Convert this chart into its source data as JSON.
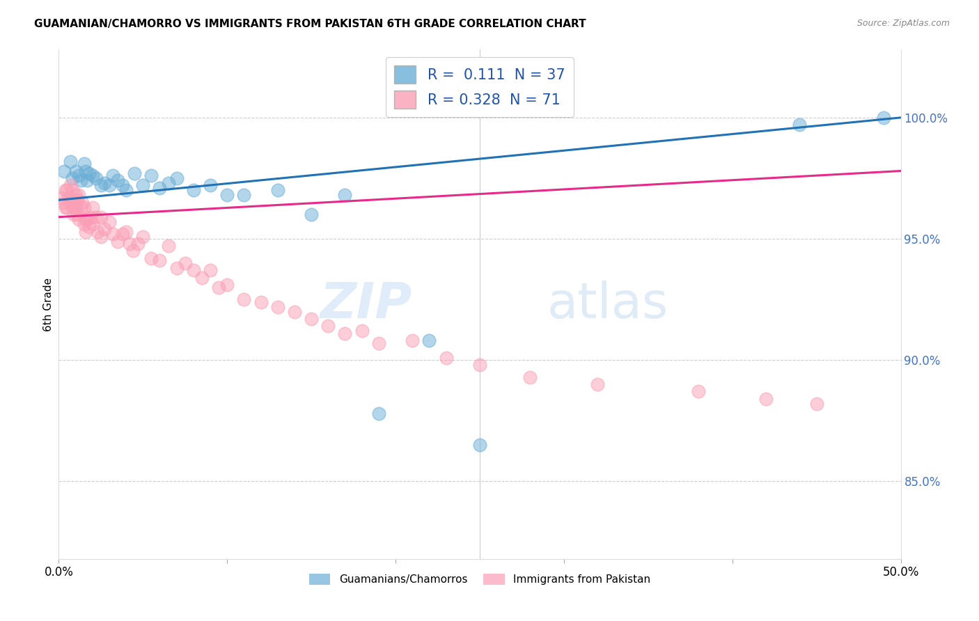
{
  "title": "GUAMANIAN/CHAMORRO VS IMMIGRANTS FROM PAKISTAN 6TH GRADE CORRELATION CHART",
  "source": "Source: ZipAtlas.com",
  "ylabel": "6th Grade",
  "ytick_labels": [
    "100.0%",
    "95.0%",
    "90.0%",
    "85.0%"
  ],
  "ytick_values": [
    1.0,
    0.95,
    0.9,
    0.85
  ],
  "xlim": [
    0.0,
    0.5
  ],
  "ylim": [
    0.818,
    1.028
  ],
  "color_blue": "#6baed6",
  "color_pink": "#fa9fb5",
  "color_blue_line": "#2171b5",
  "color_pink_line": "#e7298a",
  "watermark_zip": "ZIP",
  "watermark_atlas": "atlas",
  "legend_label_blue": "Guamanians/Chamorros",
  "legend_label_pink": "Immigrants from Pakistan",
  "blue_x": [
    0.003,
    0.007,
    0.008,
    0.01,
    0.012,
    0.013,
    0.015,
    0.016,
    0.017,
    0.018,
    0.02,
    0.022,
    0.025,
    0.027,
    0.03,
    0.032,
    0.035,
    0.038,
    0.04,
    0.045,
    0.05,
    0.055,
    0.06,
    0.065,
    0.07,
    0.08,
    0.09,
    0.1,
    0.11,
    0.13,
    0.15,
    0.17,
    0.19,
    0.22,
    0.25,
    0.44,
    0.49
  ],
  "blue_y": [
    0.978,
    0.982,
    0.975,
    0.978,
    0.976,
    0.974,
    0.981,
    0.978,
    0.974,
    0.977,
    0.976,
    0.975,
    0.972,
    0.973,
    0.972,
    0.976,
    0.974,
    0.972,
    0.97,
    0.977,
    0.972,
    0.976,
    0.971,
    0.973,
    0.975,
    0.97,
    0.972,
    0.968,
    0.968,
    0.97,
    0.96,
    0.968,
    0.878,
    0.908,
    0.865,
    0.997,
    1.0
  ],
  "pink_x": [
    0.002,
    0.003,
    0.004,
    0.004,
    0.005,
    0.005,
    0.006,
    0.007,
    0.007,
    0.008,
    0.008,
    0.009,
    0.009,
    0.01,
    0.01,
    0.011,
    0.011,
    0.012,
    0.012,
    0.013,
    0.014,
    0.015,
    0.015,
    0.016,
    0.016,
    0.017,
    0.018,
    0.019,
    0.02,
    0.02,
    0.022,
    0.023,
    0.025,
    0.025,
    0.027,
    0.03,
    0.032,
    0.035,
    0.038,
    0.04,
    0.042,
    0.044,
    0.047,
    0.05,
    0.055,
    0.06,
    0.065,
    0.07,
    0.075,
    0.08,
    0.085,
    0.09,
    0.095,
    0.1,
    0.11,
    0.12,
    0.13,
    0.14,
    0.15,
    0.16,
    0.17,
    0.18,
    0.19,
    0.21,
    0.23,
    0.25,
    0.28,
    0.32,
    0.38,
    0.42,
    0.45
  ],
  "pink_y": [
    0.967,
    0.965,
    0.97,
    0.963,
    0.97,
    0.963,
    0.967,
    0.972,
    0.965,
    0.963,
    0.97,
    0.966,
    0.96,
    0.968,
    0.963,
    0.966,
    0.96,
    0.968,
    0.958,
    0.963,
    0.965,
    0.963,
    0.956,
    0.958,
    0.953,
    0.958,
    0.955,
    0.959,
    0.963,
    0.956,
    0.959,
    0.953,
    0.959,
    0.951,
    0.954,
    0.957,
    0.952,
    0.949,
    0.952,
    0.953,
    0.948,
    0.945,
    0.948,
    0.951,
    0.942,
    0.941,
    0.947,
    0.938,
    0.94,
    0.937,
    0.934,
    0.937,
    0.93,
    0.931,
    0.925,
    0.924,
    0.922,
    0.92,
    0.917,
    0.914,
    0.911,
    0.912,
    0.907,
    0.908,
    0.901,
    0.898,
    0.893,
    0.89,
    0.887,
    0.884,
    0.882
  ],
  "blue_line_x0": 0.0,
  "blue_line_x1": 0.5,
  "blue_line_y0": 0.966,
  "blue_line_y1": 1.0,
  "pink_line_x0": 0.0,
  "pink_line_x1": 0.5,
  "pink_line_y0": 0.959,
  "pink_line_y1": 0.978
}
